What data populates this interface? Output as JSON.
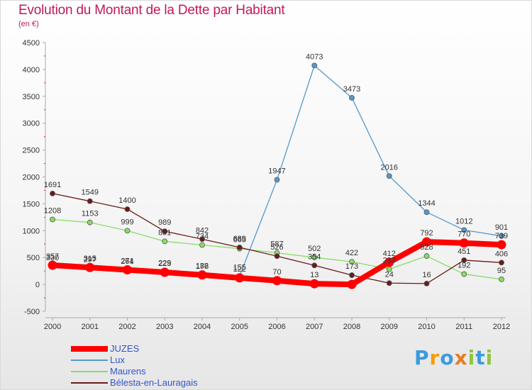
{
  "header": {
    "title": "Evolution du Montant de la Dette par Habitant",
    "unit": "(en €)"
  },
  "logo": {
    "letters": [
      "P",
      "r",
      "o",
      "x",
      "i",
      "t",
      "i"
    ],
    "colors": [
      "#3a9be0",
      "#f39c12",
      "#3a9be0",
      "#e67e22",
      "#8dc63f",
      "#3a9be0",
      "#8dc63f"
    ]
  },
  "chart_data": {
    "type": "line",
    "title": "Evolution du Montant de la Dette par Habitant",
    "ylabel": "(en €)",
    "xlabel": "",
    "x": [
      "2000",
      "2001",
      "2002",
      "2003",
      "2004",
      "2005",
      "2006",
      "2007",
      "2008",
      "2009",
      "2010",
      "2011",
      "2012"
    ],
    "ylim": [
      -500,
      4500
    ],
    "yticks": [
      -500,
      0,
      500,
      1000,
      1500,
      2000,
      2500,
      3000,
      3500,
      4000,
      4500
    ],
    "grid": false,
    "legend": "bottom-left",
    "series": [
      {
        "name": "JUZES",
        "color": "#ff0000",
        "values": [
          357,
          315,
          271,
          225,
          176,
          122,
          70,
          13,
          0,
          412,
          792,
          770,
          739
        ]
      },
      {
        "name": "Lux",
        "color": "#5599cc",
        "values": [
          330,
          297,
          264,
          229,
          182,
          155,
          1947,
          4073,
          3473,
          2016,
          1344,
          1012,
          901
        ]
      },
      {
        "name": "Maurens",
        "color": "#88dd66",
        "values": [
          1208,
          1153,
          999,
          801,
          734,
          665,
          587,
          502,
          422,
          283,
          528,
          192,
          95
        ]
      },
      {
        "name": "Bélesta-en-Lauragais",
        "color": "#6b1a1a",
        "values": [
          1691,
          1549,
          1400,
          989,
          842,
          689,
          526,
          354,
          173,
          24,
          16,
          451,
          406
        ]
      }
    ]
  }
}
